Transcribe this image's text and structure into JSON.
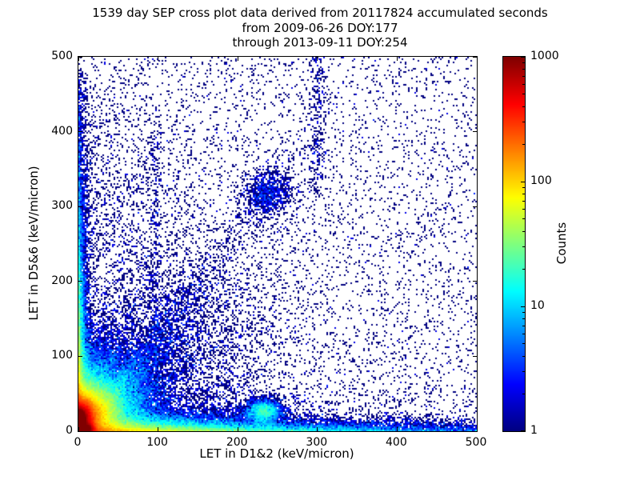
{
  "chart_data": {
    "type": "heatmap",
    "title_lines": [
      "1539 day SEP cross plot data derived from 20117824 accumulated seconds",
      "from 2009-06-26 DOY:177",
      "through 2013-09-11 DOY:254"
    ],
    "xlabel": "LET in D1&2 (keV/micron)",
    "ylabel": "LET in D5&6 (keV/micron)",
    "xlim": [
      0,
      500
    ],
    "ylim": [
      0,
      500
    ],
    "x_ticks": [
      0,
      100,
      200,
      300,
      400,
      500
    ],
    "y_ticks": [
      0,
      100,
      200,
      300,
      400,
      500
    ],
    "grid": false,
    "colorbar": {
      "label": "Counts",
      "scale": "log",
      "min": 1,
      "max": 1000,
      "ticks": [
        1,
        10,
        100,
        1000
      ],
      "colormap": "jet"
    },
    "density_features": [
      {
        "kind": "gauss",
        "cx": 3,
        "cy": 12,
        "sx": 2.5,
        "sy": 7,
        "n": 130000
      },
      {
        "kind": "gauss",
        "cx": 8,
        "cy": 4,
        "sx": 6,
        "sy": 3,
        "n": 30000
      },
      {
        "kind": "gauss",
        "cx": 6,
        "cy": 18,
        "sx": 7,
        "sy": 12,
        "n": 60000
      },
      {
        "kind": "gauss",
        "cx": 10,
        "cy": 22,
        "sx": 18,
        "sy": 20,
        "n": 40000
      },
      {
        "kind": "gauss",
        "cx": 18,
        "cy": 28,
        "sx": 38,
        "sy": 38,
        "n": 22000
      },
      {
        "kind": "ray",
        "slope": 2.0,
        "scale": 15,
        "spread": 0.08,
        "sigma0": 1.5,
        "maxR": 120,
        "n": 8000
      },
      {
        "kind": "ray",
        "slope": 0.8,
        "scale": 12,
        "spread": 0.08,
        "sigma0": 1.5,
        "maxR": 120,
        "n": 6000
      },
      {
        "kind": "expband",
        "scaleX": 110,
        "scaleY": 7,
        "maxX": 500,
        "maxY": 60,
        "n": 26000
      },
      {
        "kind": "expband",
        "scaleX": 400,
        "scaleY": 5,
        "maxX": 500,
        "maxY": 30,
        "n": 7000
      },
      {
        "kind": "expband",
        "scaleX": 4,
        "scaleY": 110,
        "maxX": 30,
        "maxY": 480,
        "n": 14000
      },
      {
        "kind": "ray",
        "slope": 1.0,
        "scale": 70,
        "spread": 0.06,
        "sigma0": 2,
        "maxR": 650,
        "n": 5000
      },
      {
        "kind": "ray",
        "slope": 1.35,
        "scale": 140,
        "spread": 0.05,
        "sigma0": 2,
        "maxR": 560,
        "n": 3000
      },
      {
        "kind": "ray",
        "slope": 0.62,
        "scale": 80,
        "spread": 0.05,
        "sigma0": 2,
        "maxR": 600,
        "n": 2600
      },
      {
        "kind": "ray",
        "slope": 2.3,
        "scale": 90,
        "spread": 0.05,
        "sigma0": 2,
        "maxR": 520,
        "n": 1800
      },
      {
        "kind": "ray",
        "slope": 4.0,
        "scale": 80,
        "spread": 0.05,
        "sigma0": 2,
        "maxR": 500,
        "n": 1400
      },
      {
        "kind": "ray",
        "slope": 7.0,
        "scale": 40,
        "spread": 0.05,
        "sigma0": 2,
        "maxR": 300,
        "n": 900
      },
      {
        "kind": "ray",
        "slope": 0.33,
        "scale": 90,
        "spread": 0.05,
        "sigma0": 2,
        "maxR": 600,
        "n": 1800
      },
      {
        "kind": "ray",
        "slope": 0.14,
        "scale": 110,
        "spread": 0.04,
        "sigma0": 2,
        "maxR": 620,
        "n": 1800
      },
      {
        "kind": "gauss",
        "cx": 238,
        "cy": 318,
        "sx": 16,
        "sy": 16,
        "n": 900
      },
      {
        "kind": "gauss",
        "cx": 232,
        "cy": 26,
        "sx": 11,
        "sy": 8,
        "n": 2600
      },
      {
        "kind": "uniform",
        "x0": 0,
        "x1": 500,
        "y0": 0,
        "y1": 500,
        "n": 5200
      },
      {
        "kind": "gauss",
        "cx": 30,
        "cy": 330,
        "sx": 45,
        "sy": 110,
        "n": 900
      },
      {
        "kind": "column",
        "cx": 300,
        "sx": 6,
        "y0": 320,
        "y1": 500,
        "n": 260
      },
      {
        "kind": "column",
        "cx": 96,
        "sx": 4,
        "y0": 120,
        "y1": 400,
        "n": 280
      },
      {
        "kind": "gauss",
        "cx": 120,
        "cy": 120,
        "sx": 60,
        "sy": 60,
        "n": 1500
      }
    ]
  }
}
